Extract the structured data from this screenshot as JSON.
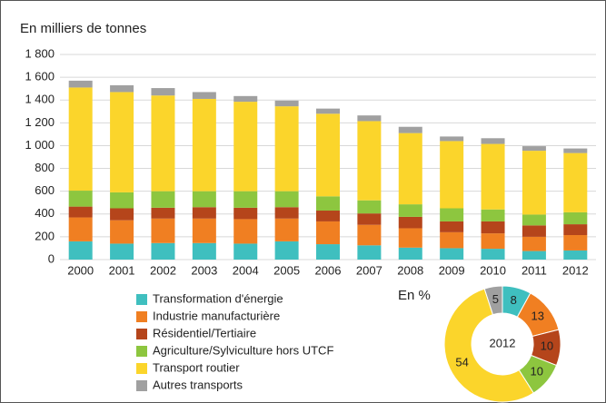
{
  "chart_data": [
    {
      "type": "bar",
      "stacked": true,
      "title": "En milliers de tonnes",
      "categories": [
        "2000",
        "2001",
        "2002",
        "2003",
        "2004",
        "2005",
        "2006",
        "2007",
        "2008",
        "2009",
        "2010",
        "2011",
        "2012"
      ],
      "series": [
        {
          "name": "Transformation d'énergie",
          "color": "#3fbfbf",
          "values": [
            160,
            140,
            145,
            145,
            140,
            160,
            135,
            125,
            105,
            100,
            95,
            75,
            80
          ]
        },
        {
          "name": "Industrie manufacturière",
          "color": "#f07f22",
          "values": [
            210,
            205,
            215,
            215,
            215,
            200,
            200,
            180,
            170,
            140,
            135,
            125,
            135
          ]
        },
        {
          "name": "Résidentiel/Tertiaire",
          "color": "#b5451b",
          "values": [
            95,
            105,
            95,
            100,
            100,
            100,
            95,
            100,
            100,
            95,
            105,
            100,
            95
          ]
        },
        {
          "name": "Agriculture/Sylviculture hors UTCF",
          "color": "#8dc63f",
          "values": [
            140,
            140,
            145,
            140,
            145,
            140,
            125,
            115,
            110,
            115,
            105,
            95,
            105
          ]
        },
        {
          "name": "Transport routier",
          "color": "#fbd52b",
          "values": [
            905,
            880,
            840,
            810,
            785,
            745,
            725,
            695,
            625,
            590,
            575,
            560,
            520
          ]
        },
        {
          "name": "Autres transports",
          "color": "#a0a0a0",
          "values": [
            60,
            60,
            65,
            60,
            50,
            50,
            45,
            50,
            55,
            40,
            50,
            40,
            40
          ]
        }
      ],
      "ylim": [
        0,
        1800
      ],
      "yticks": [
        0,
        200,
        400,
        600,
        800,
        {
          "value": 1000,
          "label": "1 000"
        },
        {
          "value": 1200,
          "label": "1 200"
        },
        {
          "value": 1400,
          "label": "1 400"
        },
        {
          "value": 1600,
          "label": "1 600"
        },
        {
          "value": 1800,
          "label": "1 800"
        }
      ],
      "grid": true
    },
    {
      "type": "donut",
      "title": "En %",
      "center_label": "2012",
      "values": [
        8,
        13,
        10,
        10,
        54,
        5
      ],
      "colors": [
        "#3fbfbf",
        "#f07f22",
        "#b5451b",
        "#8dc63f",
        "#fbd52b",
        "#a0a0a0"
      ]
    }
  ]
}
